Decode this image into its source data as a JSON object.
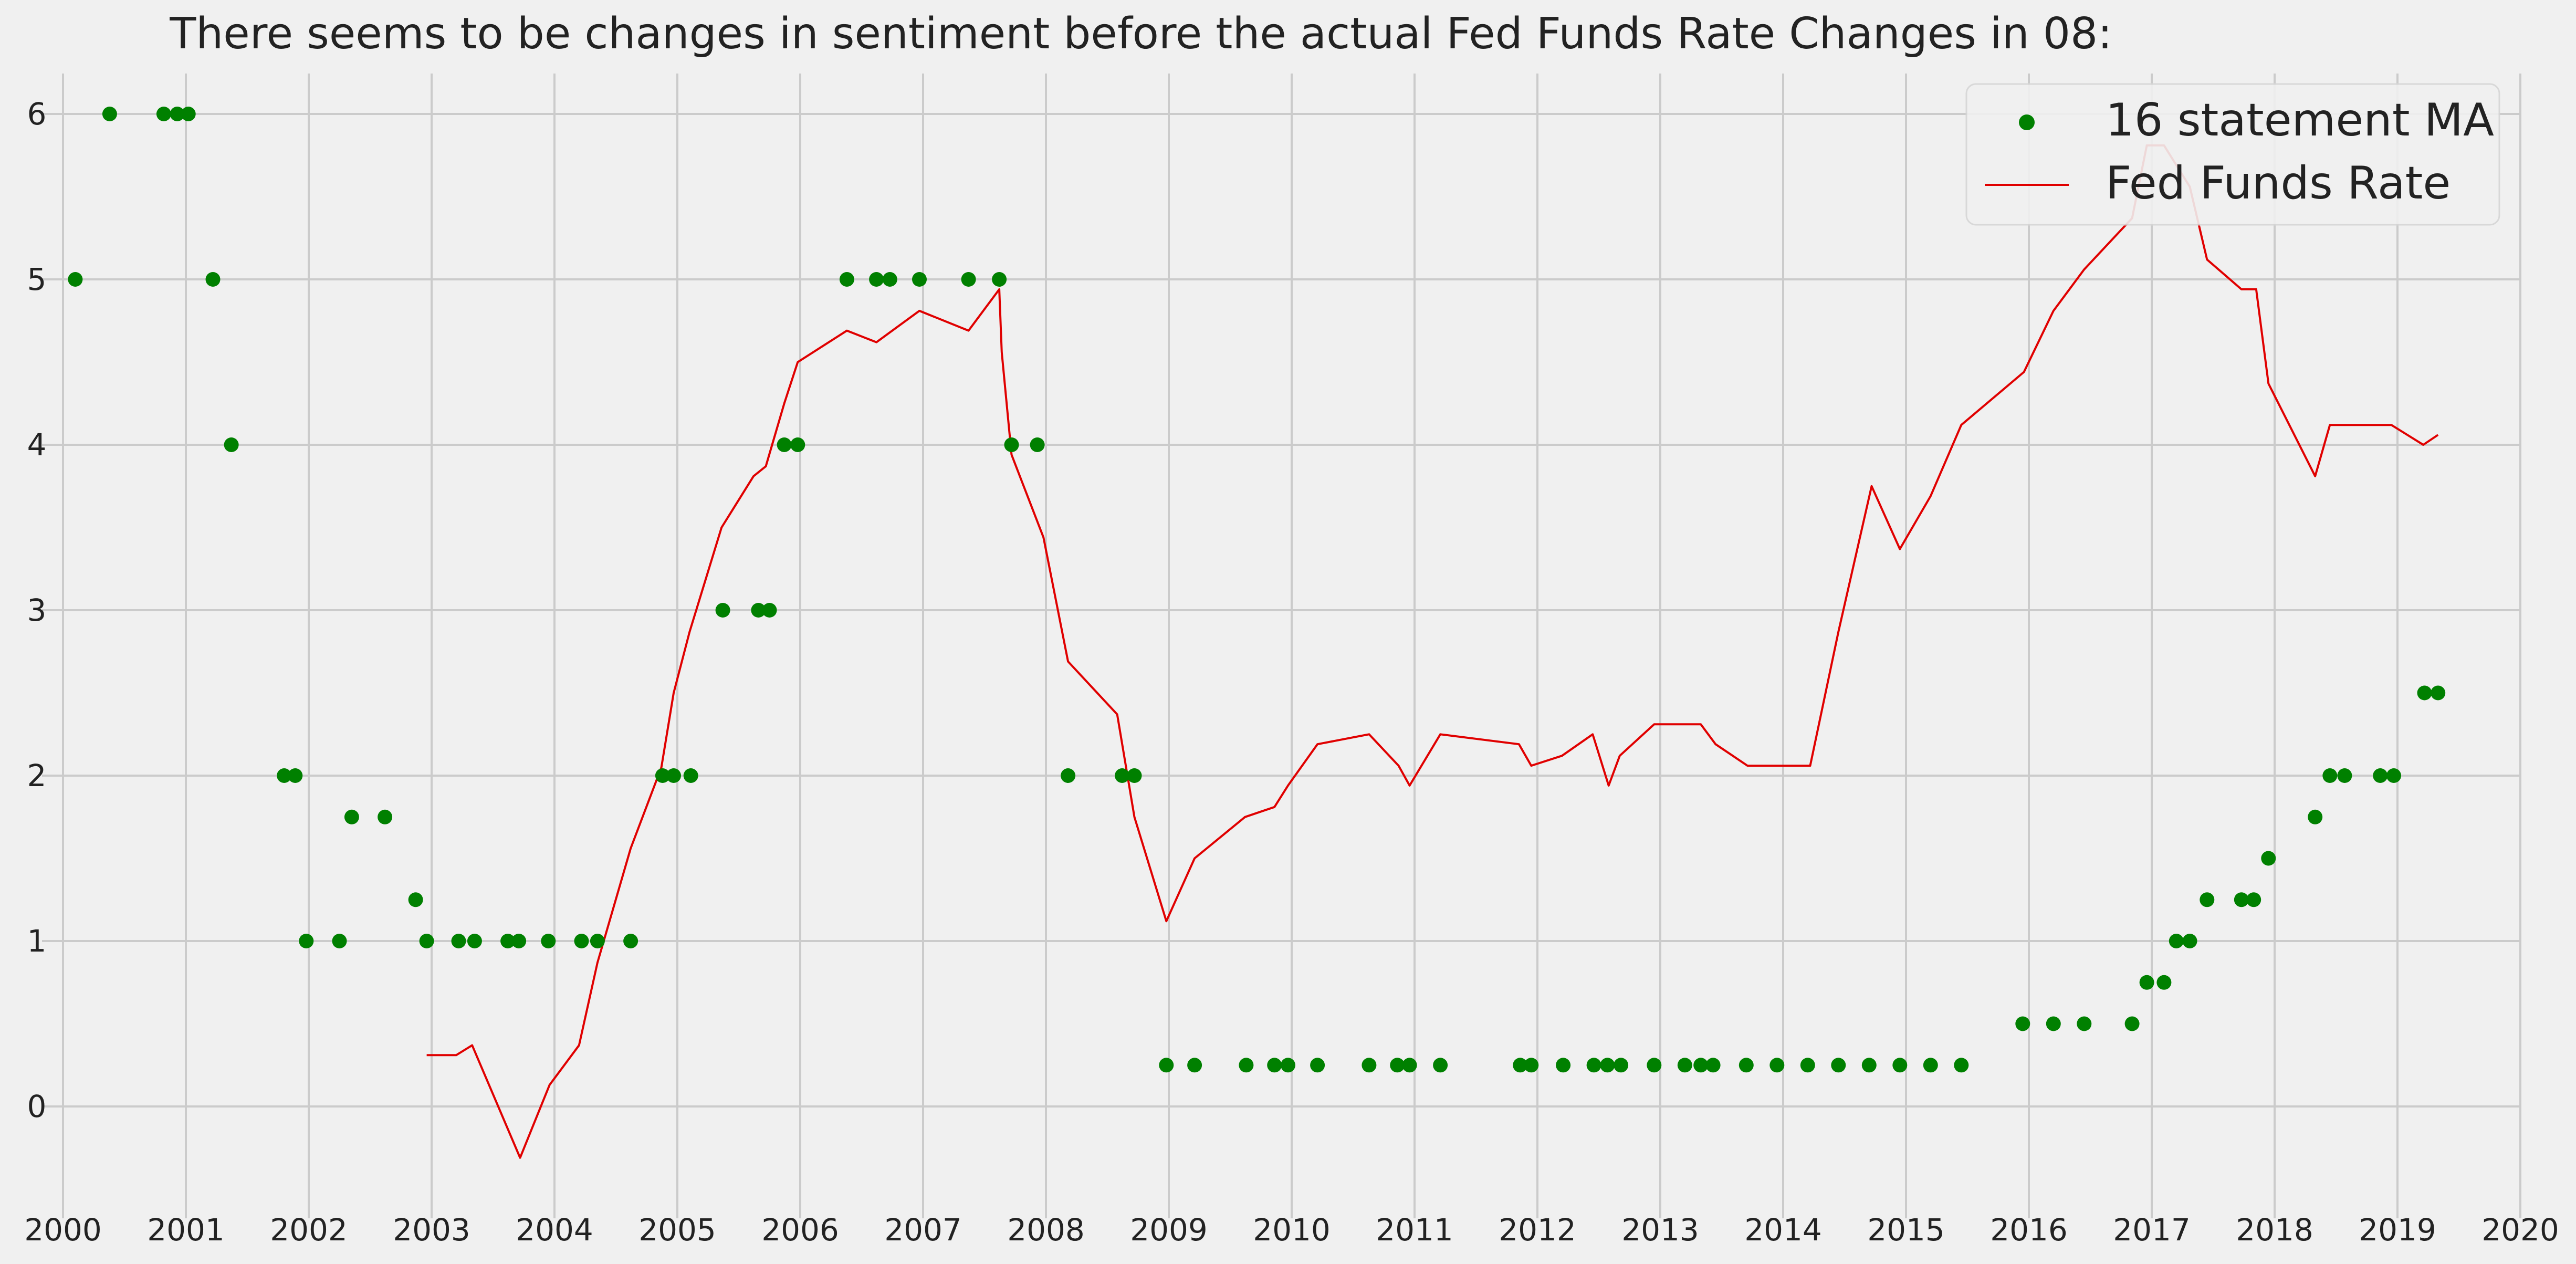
{
  "chart_data": {
    "type": "scatter",
    "title": "There seems to be changes in sentiment before the actual Fed Funds Rate Changes in 08:",
    "xlabel": "",
    "ylabel": "",
    "xlim": [
      2000,
      2020
    ],
    "ylim": [
      -0.6,
      6.25
    ],
    "x_ticks": [
      "2000",
      "2001",
      "2002",
      "2003",
      "2004",
      "2005",
      "2006",
      "2007",
      "2008",
      "2009",
      "2010",
      "2011",
      "2012",
      "2013",
      "2014",
      "2015",
      "2016",
      "2017",
      "2018",
      "2019",
      "2020"
    ],
    "y_ticks": [
      "0",
      "1",
      "2",
      "3",
      "4",
      "5",
      "6"
    ],
    "grid": true,
    "legend_position": "upper-right",
    "legend": [
      "16 statement MA",
      "Fed Funds Rate"
    ],
    "colors": {
      "background": "#f0f0f0",
      "grid": "#cbcbcb",
      "scatter": "#008000",
      "line": "#e00000",
      "text": "#222222"
    },
    "series": [
      {
        "name": "16 statement MA",
        "kind": "scatter",
        "x": [
          2000.1,
          2000.38,
          2000.82,
          2000.93,
          2001.02,
          2001.22,
          2001.37,
          2001.8,
          2001.89,
          2001.98,
          2002.25,
          2002.35,
          2002.62,
          2002.87,
          2002.96,
          2003.22,
          2003.35,
          2003.62,
          2003.71,
          2003.95,
          2004.22,
          2004.35,
          2004.62,
          2004.88,
          2004.97,
          2005.11,
          2005.37,
          2005.66,
          2005.75,
          2005.87,
          2005.98,
          2006.38,
          2006.62,
          2006.73,
          2006.97,
          2007.37,
          2007.62,
          2007.72,
          2007.93,
          2008.18,
          2008.62,
          2008.72,
          2008.98,
          2009.21,
          2009.63,
          2009.86,
          2009.97,
          2010.21,
          2010.63,
          2010.86,
          2010.96,
          2011.21,
          2011.86,
          2011.95,
          2012.21,
          2012.46,
          2012.57,
          2012.68,
          2012.95,
          2013.2,
          2013.33,
          2013.43,
          2013.7,
          2013.95,
          2014.2,
          2014.45,
          2014.7,
          2014.95,
          2015.2,
          2015.45,
          2015.95,
          2016.2,
          2016.45,
          2016.84,
          2016.96,
          2017.1,
          2017.2,
          2017.31,
          2017.45,
          2017.73,
          2017.83,
          2017.95,
          2018.33,
          2018.45,
          2018.57,
          2018.86,
          2018.97,
          2019.22,
          2019.33
        ],
        "y": [
          5,
          6,
          6,
          6,
          6,
          5,
          4,
          2,
          2,
          1,
          1,
          1.75,
          1.75,
          1.25,
          1,
          1,
          1,
          1,
          1,
          1,
          1,
          1,
          1,
          2,
          2,
          2,
          3,
          3,
          3,
          4,
          4,
          5,
          5,
          5,
          5,
          5,
          5,
          4,
          4,
          2,
          2,
          2,
          0.25,
          0.25,
          0.25,
          0.25,
          0.25,
          0.25,
          0.25,
          0.25,
          0.25,
          0.25,
          0.25,
          0.25,
          0.25,
          0.25,
          0.25,
          0.25,
          0.25,
          0.25,
          0.25,
          0.25,
          0.25,
          0.25,
          0.25,
          0.25,
          0.25,
          0.25,
          0.25,
          0.25,
          0.5,
          0.5,
          0.5,
          0.5,
          0.75,
          0.75,
          1,
          1,
          1.25,
          1.25,
          1.25,
          1.5,
          1.75,
          2,
          2,
          2,
          2,
          2.5,
          2.5
        ]
      },
      {
        "name": "Fed Funds Rate",
        "kind": "line",
        "x": [
          2002.96,
          2003.2,
          2003.33,
          2003.72,
          2003.96,
          2004.2,
          2004.35,
          2004.62,
          2004.87,
          2004.97,
          2005.1,
          2005.36,
          2005.62,
          2005.72,
          2005.87,
          2005.98,
          2006.38,
          2006.62,
          2006.97,
          2007.37,
          2007.62,
          2007.64,
          2007.72,
          2007.98,
          2008.18,
          2008.58,
          2008.72,
          2008.98,
          2009.21,
          2009.62,
          2009.86,
          2009.97,
          2010.21,
          2010.63,
          2010.87,
          2010.96,
          2011.21,
          2011.85,
          2011.95,
          2012.2,
          2012.45,
          2012.58,
          2012.67,
          2012.95,
          2013.21,
          2013.33,
          2013.45,
          2013.71,
          2013.96,
          2014.22,
          2014.45,
          2014.72,
          2014.95,
          2015.2,
          2015.45,
          2015.96,
          2016.2,
          2016.45,
          2016.84,
          2016.96,
          2017.1,
          2017.31,
          2017.45,
          2017.73,
          2017.85,
          2017.95,
          2018.33,
          2018.45,
          2018.7,
          2018.95,
          2019.21,
          2019.33
        ],
        "y": [
          0.31,
          0.31,
          0.37,
          -0.31,
          0.13,
          0.37,
          0.87,
          1.56,
          2.05,
          2.5,
          2.87,
          3.5,
          3.81,
          3.87,
          4.25,
          4.5,
          4.69,
          4.62,
          4.81,
          4.69,
          4.94,
          4.56,
          3.94,
          3.44,
          2.69,
          2.37,
          1.75,
          1.12,
          1.5,
          1.75,
          1.81,
          1.94,
          2.19,
          2.25,
          2.06,
          1.94,
          2.25,
          2.19,
          2.06,
          2.12,
          2.25,
          1.94,
          2.12,
          2.31,
          2.31,
          2.31,
          2.19,
          2.06,
          2.06,
          2.06,
          2.87,
          3.75,
          3.37,
          3.69,
          4.12,
          4.44,
          4.81,
          5.06,
          5.37,
          5.81,
          5.81,
          5.56,
          5.12,
          4.94,
          4.94,
          4.37,
          3.81,
          4.12,
          4.12,
          4.12,
          4.0,
          4.06
        ]
      }
    ]
  }
}
